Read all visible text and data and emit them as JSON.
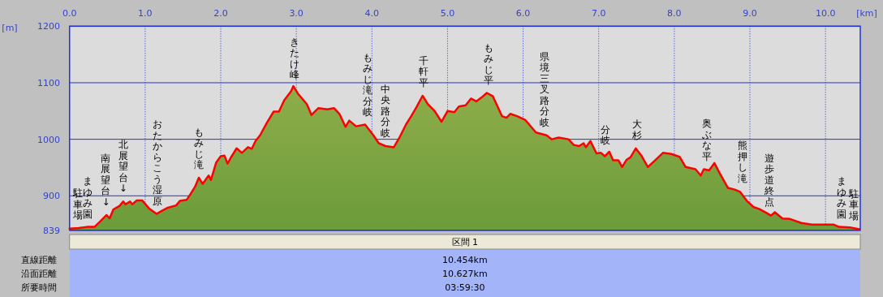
{
  "chart_data": {
    "type": "area",
    "xlabel": "[km]",
    "ylabel": "[m]",
    "xlim": [
      0,
      10.46
    ],
    "ylim": [
      839,
      1200
    ],
    "xticks": [
      {
        "value": 0,
        "label": "0.0"
      },
      {
        "value": 1,
        "label": "1.0"
      },
      {
        "value": 2,
        "label": "2.0"
      },
      {
        "value": 3,
        "label": "3.0"
      },
      {
        "value": 4,
        "label": "4.0"
      },
      {
        "value": 5,
        "label": "5.0"
      },
      {
        "value": 6,
        "label": "6.0"
      },
      {
        "value": 7,
        "label": "7.0"
      },
      {
        "value": 8,
        "label": "8.0"
      },
      {
        "value": 9,
        "label": "9.0"
      },
      {
        "value": 10,
        "label": "10.0"
      }
    ],
    "yticks": [
      839,
      900,
      1000,
      1100,
      1200
    ],
    "grid": true,
    "series": [
      {
        "color": "#6b9b3a",
        "x": [
          0,
          0.12,
          0.23,
          0.33,
          0.4,
          0.49,
          0.53,
          0.58,
          0.66,
          0.71,
          0.74,
          0.8,
          0.83,
          0.89,
          0.96,
          1.05,
          1.15,
          1.23,
          1.3,
          1.41,
          1.46,
          1.55,
          1.6,
          1.66,
          1.71,
          1.76,
          1.84,
          1.87,
          1.94,
          2.0,
          2.05,
          2.09,
          2.14,
          2.21,
          2.28,
          2.36,
          2.41,
          2.46,
          2.52,
          2.61,
          2.7,
          2.77,
          2.84,
          2.93,
          2.96,
          3.02,
          3.14,
          3.2,
          3.29,
          3.41,
          3.5,
          3.57,
          3.65,
          3.7,
          3.79,
          3.91,
          4.02,
          4.09,
          4.18,
          4.29,
          4.36,
          4.45,
          4.52,
          4.59,
          4.67,
          4.74,
          4.83,
          4.92,
          5.0,
          5.09,
          5.15,
          5.24,
          5.31,
          5.38,
          5.45,
          5.52,
          5.6,
          5.72,
          5.78,
          5.83,
          5.92,
          6.03,
          6.17,
          6.31,
          6.38,
          6.47,
          6.6,
          6.67,
          6.74,
          6.8,
          6.83,
          6.89,
          6.97,
          7.03,
          7.08,
          7.14,
          7.19,
          7.26,
          7.31,
          7.37,
          7.42,
          7.49,
          7.57,
          7.65,
          7.74,
          7.85,
          7.96,
          8.07,
          8.15,
          8.28,
          8.35,
          8.39,
          8.46,
          8.53,
          8.6,
          8.71,
          8.8,
          8.87,
          8.96,
          9.05,
          9.12,
          9.19,
          9.28,
          9.33,
          9.43,
          9.53,
          9.68,
          9.82,
          10.11,
          10.18,
          10.32,
          10.45
        ],
        "values": [
          842,
          843,
          845,
          845,
          854,
          866,
          860,
          876,
          882,
          890,
          885,
          890,
          885,
          892,
          892,
          878,
          868,
          874,
          879,
          883,
          891,
          893,
          903,
          916,
          932,
          921,
          936,
          928,
          959,
          970,
          971,
          957,
          969,
          984,
          976,
          986,
          983,
          997,
          1007,
          1029,
          1049,
          1049,
          1069,
          1085,
          1094,
          1081,
          1062,
          1043,
          1055,
          1053,
          1055,
          1045,
          1022,
          1033,
          1023,
          1026,
          1007,
          993,
          988,
          986,
          1002,
          1026,
          1041,
          1057,
          1077,
          1062,
          1050,
          1031,
          1050,
          1048,
          1058,
          1060,
          1072,
          1067,
          1074,
          1082,
          1076,
          1041,
          1038,
          1045,
          1041,
          1034,
          1012,
          1007,
          1000,
          1003,
          1000,
          990,
          988,
          993,
          986,
          997,
          975,
          976,
          970,
          978,
          963,
          963,
          951,
          964,
          968,
          984,
          970,
          951,
          962,
          976,
          974,
          969,
          951,
          947,
          936,
          947,
          945,
          958,
          940,
          914,
          911,
          907,
          891,
          880,
          877,
          872,
          865,
          871,
          860,
          859,
          852,
          849,
          849,
          845,
          844,
          841
        ]
      }
    ],
    "annotations": [
      {
        "text": "駐車場",
        "x": 0.11,
        "y": 843
      },
      {
        "text": "まゆみ園",
        "x": 0.24,
        "y": 845
      },
      {
        "text": "南展望台↓",
        "x": 0.48,
        "y": 866
      },
      {
        "text": "北展望台↓",
        "x": 0.71,
        "y": 890
      },
      {
        "text": "おたからこう湿原",
        "x": 1.16,
        "y": 868
      },
      {
        "text": "もみじ滝",
        "x": 1.71,
        "y": 932
      },
      {
        "text": "きたけ峰",
        "x": 2.98,
        "y": 1091
      },
      {
        "text": "もみじ滝分岐",
        "x": 3.94,
        "y": 1025
      },
      {
        "text": "中央路分岐",
        "x": 4.18,
        "y": 988
      },
      {
        "text": "千軒平",
        "x": 4.68,
        "y": 1077
      },
      {
        "text": "もみじ平",
        "x": 5.54,
        "y": 1081
      },
      {
        "text": "県境三叉路分岐",
        "x": 6.28,
        "y": 1007
      },
      {
        "text": "分岐",
        "x": 7.09,
        "y": 975
      },
      {
        "text": "大杉",
        "x": 7.51,
        "y": 984
      },
      {
        "text": "奥ぶな平",
        "x": 8.43,
        "y": 947
      },
      {
        "text": "熊押し滝",
        "x": 8.9,
        "y": 908
      },
      {
        "text": "遊歩道終点",
        "x": 9.26,
        "y": 866
      },
      {
        "text": "まゆみ園",
        "x": 10.21,
        "y": 845
      },
      {
        "text": "駐車場",
        "x": 10.37,
        "y": 842
      },
      "区間 1",
      "直線距離",
      "10.454km",
      "沿面距離",
      "10.627km",
      "所要時間",
      "03:59:30"
    ]
  }
}
